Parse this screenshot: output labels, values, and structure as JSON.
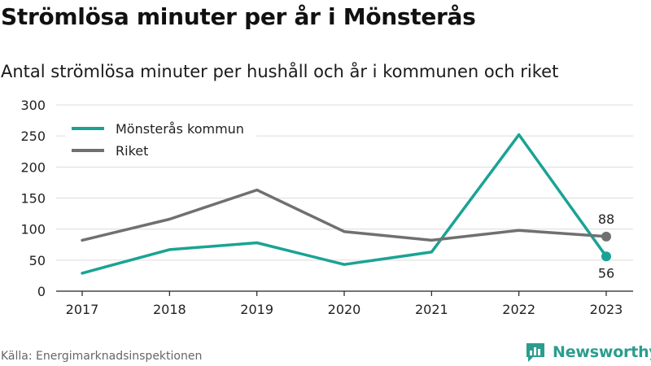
{
  "title": "Strömlösa minuter per år i Mönsterås",
  "subtitle": "Antal strömlösa minuter per hushåll och år i kommunen och riket",
  "source": "Källa: Energimarknadsinspektionen",
  "brand": {
    "name": "Newsworthy",
    "icon": "newsworthy-logo-icon",
    "color": "#2a9d8f"
  },
  "chart_data": {
    "type": "line",
    "title": "",
    "xlabel": "",
    "ylabel": "",
    "x": [
      "2017",
      "2018",
      "2019",
      "2020",
      "2021",
      "2022",
      "2023"
    ],
    "ylim": [
      0,
      300
    ],
    "yticks": [
      0,
      50,
      100,
      150,
      200,
      250,
      300
    ],
    "grid": true,
    "legend": "top-left",
    "series": [
      {
        "name": "Mönsterås kommun",
        "color": "#1aa394",
        "values": [
          29,
          67,
          78,
          43,
          63,
          252,
          56
        ]
      },
      {
        "name": "Riket",
        "color": "#707070",
        "values": [
          82,
          116,
          163,
          96,
          82,
          98,
          88
        ]
      }
    ],
    "end_labels": [
      {
        "series": "Riket",
        "text": "88",
        "position": "above"
      },
      {
        "series": "Mönsterås kommun",
        "text": "56",
        "position": "below"
      }
    ]
  }
}
